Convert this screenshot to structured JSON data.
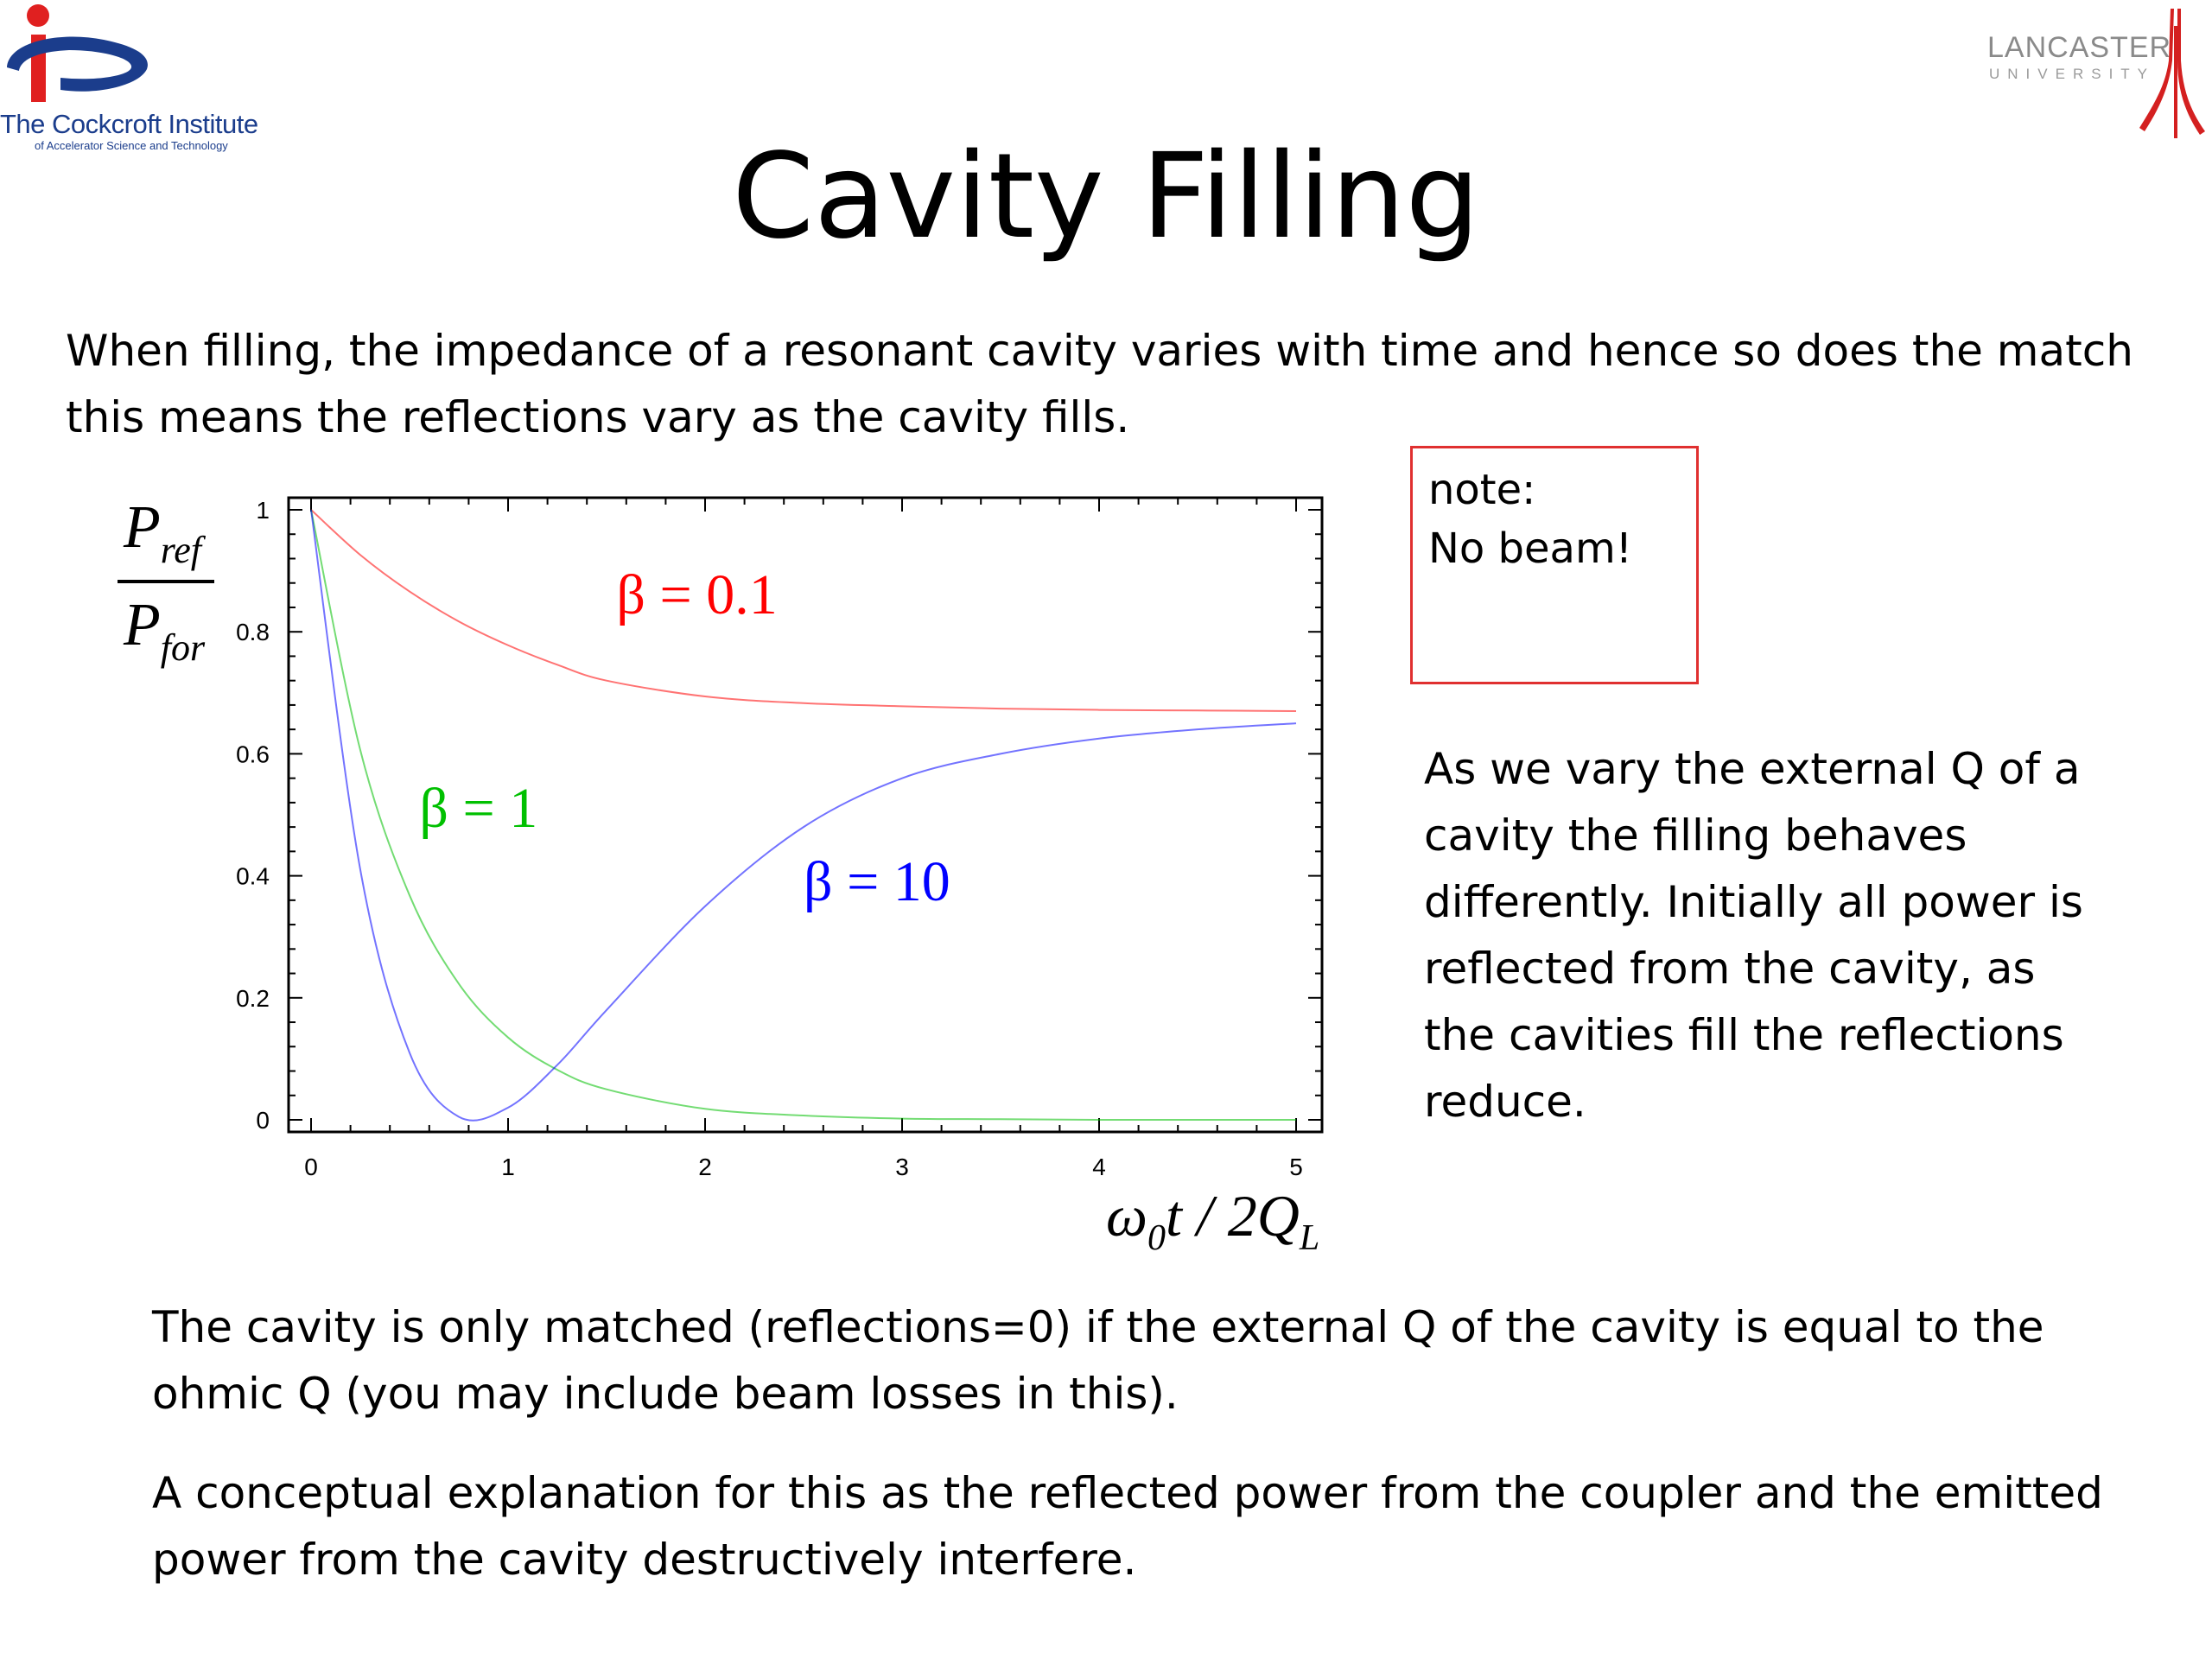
{
  "header": {
    "left_logo": {
      "name": "The Cockcroft Institute",
      "subtitle": "of Accelerator Science and Technology",
      "icon": "cockcroft-logo"
    },
    "right_logo": {
      "name": "LANCASTER",
      "subtitle": "UNIVERSITY",
      "icon": "lancaster-logo"
    }
  },
  "slide": {
    "title": "Cavity Filling",
    "intro": "When filling, the impedance of a resonant cavity varies with time and hence so does the match this means the reflections vary as the cavity fills.",
    "note": {
      "line1": "note:",
      "line2": "No beam!"
    },
    "side_text": "As we vary the external Q of a cavity the filling behaves differently. Initially all power is reflected from the cavity, as the cavities fill the reflections reduce.",
    "bottom1": "The cavity is only matched (reflections=0) if the external Q of the cavity is equal to the ohmic Q (you may include beam losses in this).",
    "bottom2": "A conceptual explanation for this as the reflected power from the coupler and the emitted power from the cavity destructively interfere."
  },
  "chart_data": {
    "type": "line",
    "title": "",
    "xlabel": "ω0t / 2QL",
    "ylabel": "Pref / Pfor",
    "xlim": [
      0,
      5
    ],
    "ylim": [
      0,
      1
    ],
    "xticks": [
      0,
      1,
      2,
      3,
      4,
      5
    ],
    "yticks": [
      0,
      0.2,
      0.4,
      0.6,
      0.8,
      1
    ],
    "x": [
      0,
      0.25,
      0.5,
      0.75,
      1,
      1.25,
      1.5,
      2,
      2.5,
      3,
      3.5,
      4,
      4.5,
      5
    ],
    "series": [
      {
        "name": "β = 0.1",
        "color": "#ff0000",
        "values": [
          1.0,
          0.926,
          0.866,
          0.817,
          0.778,
          0.746,
          0.72,
          0.694,
          0.683,
          0.678,
          0.674,
          0.672,
          0.671,
          0.67
        ]
      },
      {
        "name": "β = 1",
        "color": "#00c000",
        "values": [
          1.0,
          0.606,
          0.368,
          0.223,
          0.135,
          0.082,
          0.05,
          0.018,
          0.007,
          0.002,
          0.001,
          0.0,
          0.0,
          0.0
        ]
      },
      {
        "name": "β = 10",
        "color": "#0000ff",
        "values": [
          1.0,
          0.41,
          0.11,
          0.005,
          0.02,
          0.09,
          0.18,
          0.35,
          0.48,
          0.56,
          0.6,
          0.625,
          0.64,
          0.65
        ]
      }
    ],
    "labels": [
      {
        "text": "β = 0.1",
        "color": "#ff0000",
        "x": 1.55,
        "y": 0.83
      },
      {
        "text": "β = 1",
        "color": "#00c000",
        "x": 0.55,
        "y": 0.48
      },
      {
        "text": "β = 10",
        "color": "#0000ff",
        "x": 2.5,
        "y": 0.36
      }
    ],
    "grid": false,
    "legend": "none"
  }
}
